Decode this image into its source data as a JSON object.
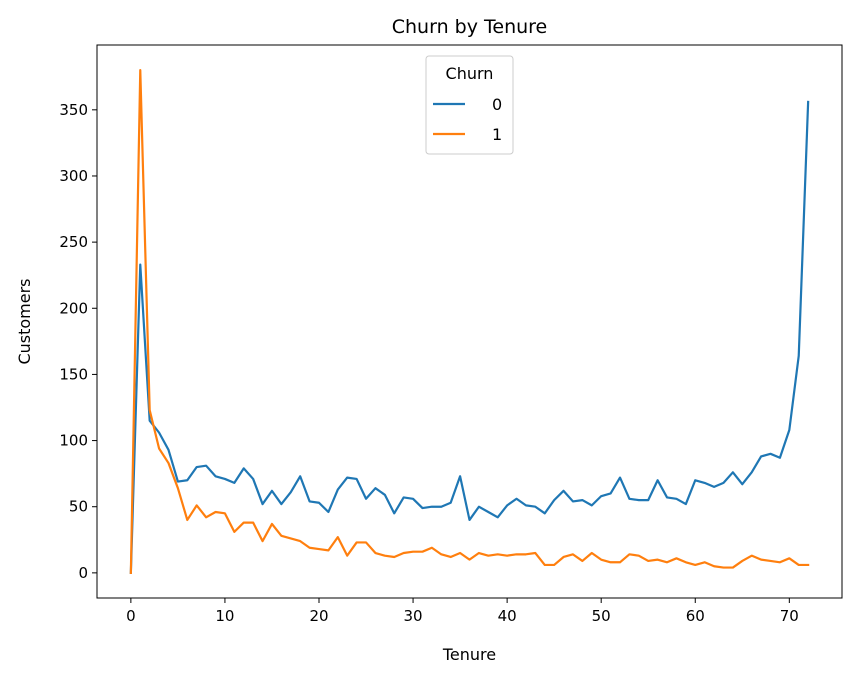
{
  "chart_data": {
    "type": "line",
    "title": "Churn by Tenure",
    "xlabel": "Tenure",
    "ylabel": "Customers",
    "xlim": [
      -3.6,
      75.6
    ],
    "ylim": [
      -19,
      399
    ],
    "xticks": [
      0,
      10,
      20,
      30,
      40,
      50,
      60,
      70
    ],
    "yticks": [
      0,
      50,
      100,
      150,
      200,
      250,
      300,
      350
    ],
    "legend": {
      "title": "Churn",
      "placement": "upper-center"
    },
    "x": [
      0,
      1,
      2,
      3,
      4,
      5,
      6,
      7,
      8,
      9,
      10,
      11,
      12,
      13,
      14,
      15,
      16,
      17,
      18,
      19,
      20,
      21,
      22,
      23,
      24,
      25,
      26,
      27,
      28,
      29,
      30,
      31,
      32,
      33,
      34,
      35,
      36,
      37,
      38,
      39,
      40,
      41,
      42,
      43,
      44,
      45,
      46,
      47,
      48,
      49,
      50,
      51,
      52,
      53,
      54,
      55,
      56,
      57,
      58,
      59,
      60,
      61,
      62,
      63,
      64,
      65,
      66,
      67,
      68,
      69,
      70,
      71,
      72
    ],
    "series": [
      {
        "name": "0",
        "color": "#1f77b4",
        "values": [
          0,
          233,
          115,
          106,
          93,
          69,
          70,
          80,
          81,
          73,
          71,
          68,
          79,
          71,
          52,
          62,
          52,
          61,
          73,
          54,
          53,
          46,
          63,
          72,
          71,
          56,
          64,
          59,
          45,
          57,
          56,
          49,
          50,
          50,
          53,
          73,
          40,
          50,
          46,
          42,
          51,
          56,
          51,
          50,
          45,
          55,
          62,
          54,
          55,
          51,
          58,
          60,
          72,
          56,
          55,
          55,
          70,
          57,
          56,
          52,
          70,
          68,
          65,
          68,
          76,
          67,
          76,
          88,
          90,
          87,
          108,
          164,
          356
        ]
      },
      {
        "name": "1",
        "color": "#ff7f0e",
        "values": [
          0,
          380,
          123,
          94,
          83,
          64,
          40,
          51,
          42,
          46,
          45,
          31,
          38,
          38,
          24,
          37,
          28,
          26,
          24,
          19,
          18,
          17,
          27,
          13,
          23,
          23,
          15,
          13,
          12,
          15,
          16,
          16,
          19,
          14,
          12,
          15,
          10,
          15,
          13,
          14,
          13,
          14,
          14,
          15,
          6,
          6,
          12,
          14,
          9,
          15,
          10,
          8,
          8,
          14,
          13,
          9,
          10,
          8,
          11,
          8,
          6,
          8,
          5,
          4,
          4,
          9,
          13,
          10,
          9,
          8,
          11,
          6,
          6
        ]
      }
    ]
  }
}
